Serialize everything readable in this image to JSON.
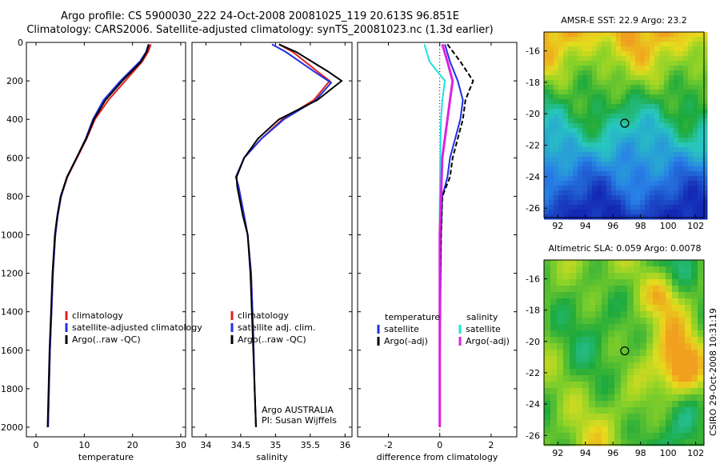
{
  "header": {
    "line1": "Argo profile: CS 5900030_222 24-Oct-2008 20081025_119 20.613S 96.851E",
    "line2": "Climatology: CARS2006. Satellite-adjusted climatology: synTS_20081023.nc (1.3d earlier)"
  },
  "credit": "CSIRO 29-Oct-2008 10:31:19",
  "chart_data": [
    {
      "type": "line",
      "id": "temperature",
      "xlabel": "temperature",
      "ylabel": "",
      "xlim": [
        -2,
        31
      ],
      "ylim": [
        2050,
        0
      ],
      "xticks": [
        0,
        10,
        20,
        30
      ],
      "yticks": [
        0,
        200,
        400,
        600,
        800,
        1000,
        1200,
        1400,
        1600,
        1800,
        2000
      ],
      "legend": [
        "climatology",
        "satellite-adjusted climatology",
        "Argo(..raw -QC)"
      ],
      "series": [
        {
          "name": "climatology",
          "color": "#e02020",
          "x": [
            23.8,
            23.2,
            22.0,
            18.5,
            15.0,
            12.2,
            10.5,
            8.5,
            6.5,
            5.2,
            4.5,
            4.0,
            3.5,
            3.2,
            2.9,
            2.7,
            2.5
          ],
          "y": [
            10,
            50,
            100,
            200,
            300,
            400,
            500,
            600,
            700,
            800,
            900,
            1000,
            1200,
            1400,
            1600,
            1800,
            2000
          ]
        },
        {
          "name": "satellite-adjusted climatology",
          "color": "#2030e0",
          "x": [
            23.3,
            22.8,
            21.5,
            17.5,
            14.0,
            11.8,
            10.3,
            8.4,
            6.4,
            5.2,
            4.5,
            4.0,
            3.5,
            3.2,
            2.9,
            2.7,
            2.5
          ],
          "y": [
            10,
            50,
            100,
            200,
            300,
            400,
            500,
            600,
            700,
            800,
            900,
            1000,
            1200,
            1400,
            1600,
            1800,
            2000
          ]
        },
        {
          "name": "Argo(..raw -QC)",
          "color": "#000000",
          "x": [
            23.4,
            22.9,
            21.8,
            17.9,
            14.4,
            12.0,
            10.4,
            8.4,
            6.4,
            5.1,
            4.4,
            3.9,
            3.4,
            3.1,
            2.8,
            2.6,
            2.4
          ],
          "y": [
            10,
            50,
            100,
            200,
            300,
            400,
            500,
            600,
            700,
            800,
            900,
            1000,
            1200,
            1400,
            1600,
            1800,
            2000
          ]
        }
      ]
    },
    {
      "type": "line",
      "id": "salinity",
      "xlabel": "salinity",
      "ylabel": "",
      "xlim": [
        33.8,
        36.1
      ],
      "ylim": [
        2050,
        0
      ],
      "xticks": [
        34,
        34.5,
        35,
        35.5,
        36
      ],
      "legend": [
        "climatology",
        "satellite adj. clim.",
        "Argo(..raw -QC)"
      ],
      "annotation": [
        "Argo AUSTRALIA",
        "PI: Susan Wijffels"
      ],
      "series": [
        {
          "name": "climatology",
          "color": "#e02020",
          "x": [
            35.05,
            35.25,
            35.6,
            35.78,
            35.55,
            35.1,
            34.8,
            34.55,
            34.43,
            34.47,
            34.55,
            34.6,
            34.65,
            34.68,
            34.7,
            34.72
          ],
          "y": [
            10,
            50,
            150,
            200,
            300,
            400,
            500,
            600,
            700,
            750,
            900,
            1000,
            1200,
            1500,
            1800,
            2000
          ]
        },
        {
          "name": "satellite adj. clim.",
          "color": "#2030e0",
          "x": [
            34.95,
            35.15,
            35.55,
            35.8,
            35.58,
            35.12,
            34.8,
            34.55,
            34.43,
            34.47,
            34.55,
            34.6,
            34.65,
            34.68,
            34.7,
            34.72
          ],
          "y": [
            10,
            50,
            150,
            210,
            300,
            400,
            500,
            600,
            700,
            750,
            900,
            1000,
            1200,
            1500,
            1800,
            2000
          ]
        },
        {
          "name": "Argo(..raw -QC)",
          "color": "#000000",
          "x": [
            35.05,
            35.3,
            35.75,
            35.95,
            35.6,
            35.05,
            34.75,
            34.55,
            34.44,
            34.45,
            34.53,
            34.6,
            34.64,
            34.67,
            34.7,
            34.72
          ],
          "y": [
            10,
            50,
            150,
            200,
            300,
            400,
            500,
            600,
            700,
            750,
            900,
            1000,
            1200,
            1500,
            1800,
            2000
          ]
        }
      ]
    },
    {
      "type": "line",
      "id": "difference",
      "xlabel": "difference from climatology",
      "ylabel": "",
      "xlim": [
        -3.2,
        3.0
      ],
      "ylim": [
        2050,
        0
      ],
      "xticks": [
        -2,
        0,
        2
      ],
      "legend": [
        "temperature",
        "satellite",
        "Argo(-adj)",
        "salinity",
        "satellite",
        "Argo(-adj)"
      ],
      "series": [
        {
          "name": "temperature satellite",
          "color": "#2030e0",
          "x": [
            0.2,
            0.4,
            0.7,
            0.9,
            0.8,
            0.6,
            0.4,
            0.3,
            0.1,
            0.05,
            0.02,
            0.0,
            0.0
          ],
          "y": [
            10,
            100,
            200,
            300,
            400,
            500,
            600,
            700,
            800,
            1000,
            1400,
            1800,
            2000
          ]
        },
        {
          "name": "temperature Argo(-adj)",
          "color": "#000000",
          "x": [
            0.3,
            0.8,
            1.3,
            1.0,
            0.9,
            0.7,
            0.5,
            0.4,
            0.1,
            0.05,
            0.0,
            0.0,
            0.0
          ],
          "y": [
            10,
            100,
            200,
            300,
            400,
            500,
            600,
            700,
            800,
            1000,
            1400,
            1800,
            2000
          ]
        },
        {
          "name": "salinity satellite",
          "color": "#20e0e0",
          "x": [
            -0.6,
            -0.4,
            0.2,
            0.1,
            0.05,
            0.03,
            0.02,
            0.0,
            0.0,
            0.0,
            0.0
          ],
          "y": [
            10,
            100,
            200,
            300,
            400,
            500,
            600,
            800,
            1000,
            1500,
            2000
          ]
        },
        {
          "name": "salinity Argo(-adj)",
          "color": "#e020e0",
          "x": [
            0.1,
            0.3,
            0.5,
            0.4,
            0.3,
            0.1,
            0.05,
            0.0,
            0.0,
            0.0
          ],
          "y": [
            10,
            100,
            200,
            300,
            400,
            600,
            800,
            1000,
            1500,
            2000
          ]
        }
      ]
    },
    {
      "type": "heatmap",
      "id": "sst",
      "title": "AMSR-E SST: 22.9 Argo: 23.2",
      "xlim": [
        91,
        102.6
      ],
      "ylim": [
        -26.6,
        -14.8
      ],
      "xticks": [
        92,
        94,
        96,
        98,
        100,
        102
      ],
      "yticks": [
        -16,
        -18,
        -20,
        -22,
        -24,
        -26
      ],
      "marker": {
        "lon": 96.85,
        "lat": -20.6
      }
    },
    {
      "type": "heatmap",
      "id": "sla",
      "title": "Altimetric SLA: 0.059 Argo: 0.0078",
      "xlim": [
        91,
        102.6
      ],
      "ylim": [
        -26.6,
        -14.8
      ],
      "xticks": [
        92,
        94,
        96,
        98,
        100,
        102
      ],
      "yticks": [
        -16,
        -18,
        -20,
        -22,
        -24,
        -26
      ],
      "marker": {
        "lon": 96.85,
        "lat": -20.6
      }
    }
  ]
}
